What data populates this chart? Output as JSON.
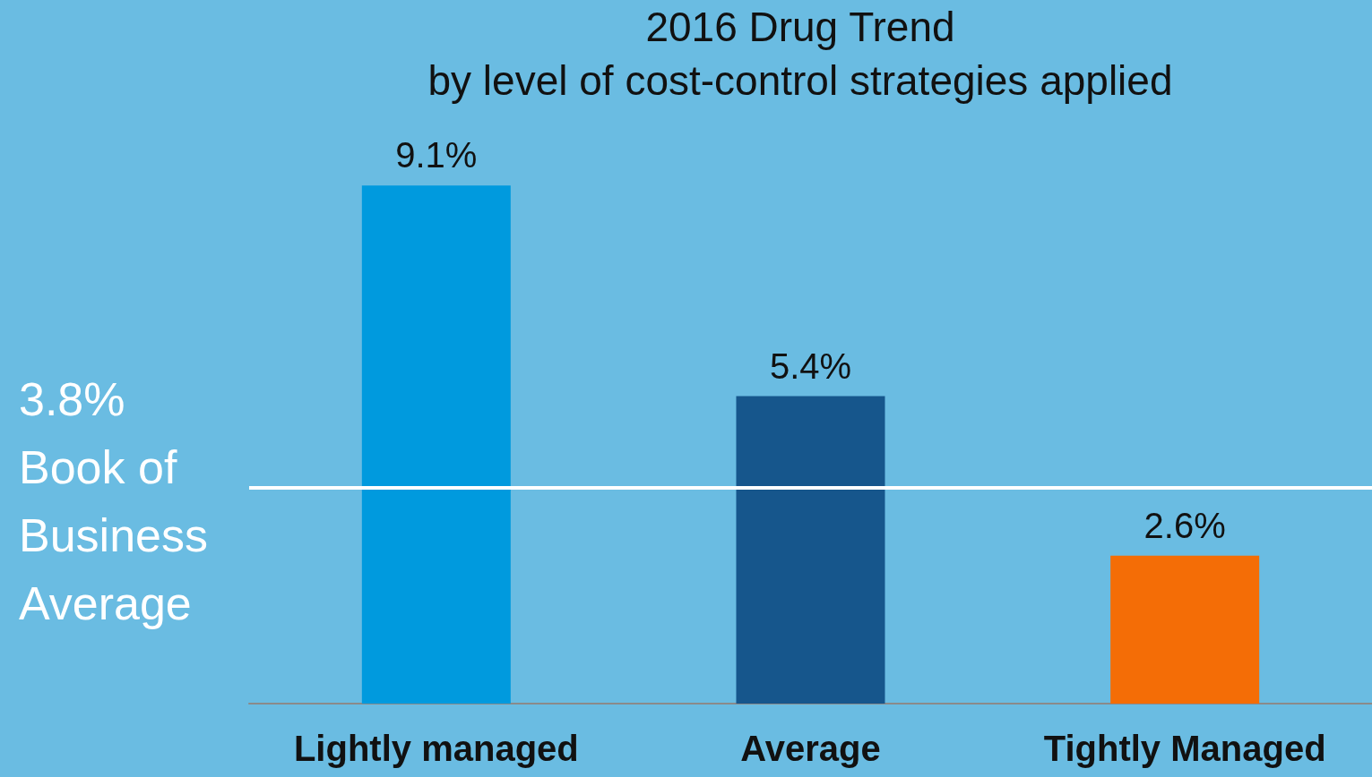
{
  "chart_data": {
    "type": "bar",
    "title": "2016 Drug Trend",
    "subtitle": "by level of cost-control strategies applied",
    "categories": [
      "Lightly managed",
      "Average",
      "Tightly Managed"
    ],
    "values": [
      9.1,
      5.4,
      2.6
    ],
    "colors": [
      "#009ade",
      "#16568c",
      "#f46d06"
    ],
    "value_labels": [
      "9.1%",
      "5.4%",
      "2.6%"
    ],
    "ref_lines": [
      {
        "axis": "y",
        "value": 3.8,
        "label": "3.8% Book of Business Average",
        "color": "#ffffff",
        "line_style": "solid"
      }
    ]
  }
}
